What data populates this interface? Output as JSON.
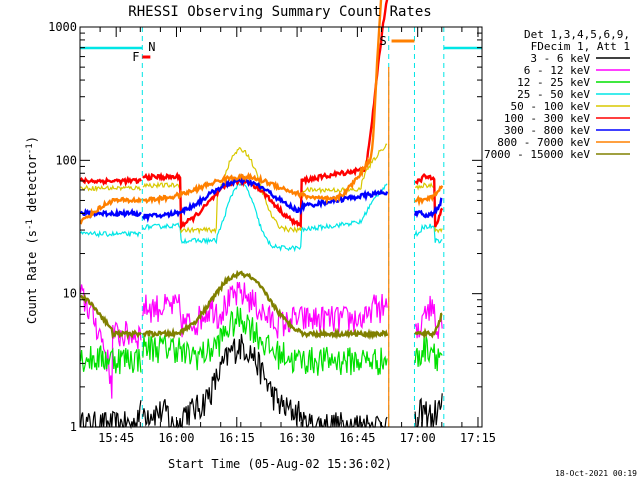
{
  "chart_data": {
    "type": "line",
    "title": "RHESSI Observing Summary Count Rates",
    "xlabel": "Start Time (05-Aug-02 15:36:02)",
    "ylabel_main": "Count Rate (s",
    "ylabel_sup1": "-1",
    "ylabel_mid": " detector",
    "ylabel_sup2": "-1",
    "ylabel_end": ")",
    "y_scale": "log",
    "ylim": [
      1,
      1000
    ],
    "xlim_minutes": [
      0,
      100
    ],
    "x_ticks": [
      {
        "m": 9,
        "label": "15:45"
      },
      {
        "m": 24,
        "label": "16:00"
      },
      {
        "m": 39,
        "label": "16:15"
      },
      {
        "m": 54,
        "label": "16:30"
      },
      {
        "m": 69,
        "label": "16:45"
      },
      {
        "m": 84,
        "label": "17:00"
      },
      {
        "m": 99,
        "label": "17:15"
      }
    ],
    "y_ticks": [
      {
        "v": 1,
        "label": "1"
      },
      {
        "v": 10,
        "label": "10"
      },
      {
        "v": 100,
        "label": "100"
      },
      {
        "v": 1000,
        "label": "1000"
      }
    ],
    "legend_header": [
      "Det 1,3,4,5,6,9,",
      "FDecim 1, Att 1"
    ],
    "series": [
      {
        "name": "3 - 6 keV",
        "color": "#000000"
      },
      {
        "name": "6 - 12 keV",
        "color": "#ff00ff"
      },
      {
        "name": "12 - 25 keV",
        "color": "#00e000"
      },
      {
        "name": "25 - 50 keV",
        "color": "#00e6e6"
      },
      {
        "name": "50 - 100 keV",
        "color": "#d8c800"
      },
      {
        "name": "100 - 300 keV",
        "color": "#ff0000"
      },
      {
        "name": "300 - 800 keV",
        "color": "#0000ff"
      },
      {
        "name": "800 - 7000 keV",
        "color": "#ff8000"
      },
      {
        "name": "7000 - 15000 keV",
        "color": "#808000"
      }
    ],
    "flags": [
      {
        "label": "N",
        "color": "#00e6e6"
      },
      {
        "label": "F",
        "color": "#ff0000"
      },
      {
        "label": "S",
        "color": "#ff8000"
      }
    ],
    "night_boundaries_minutes": [
      15.5,
      76.8,
      83.2,
      90.5
    ],
    "timestamp": "18-Oct-2021 00:19"
  }
}
